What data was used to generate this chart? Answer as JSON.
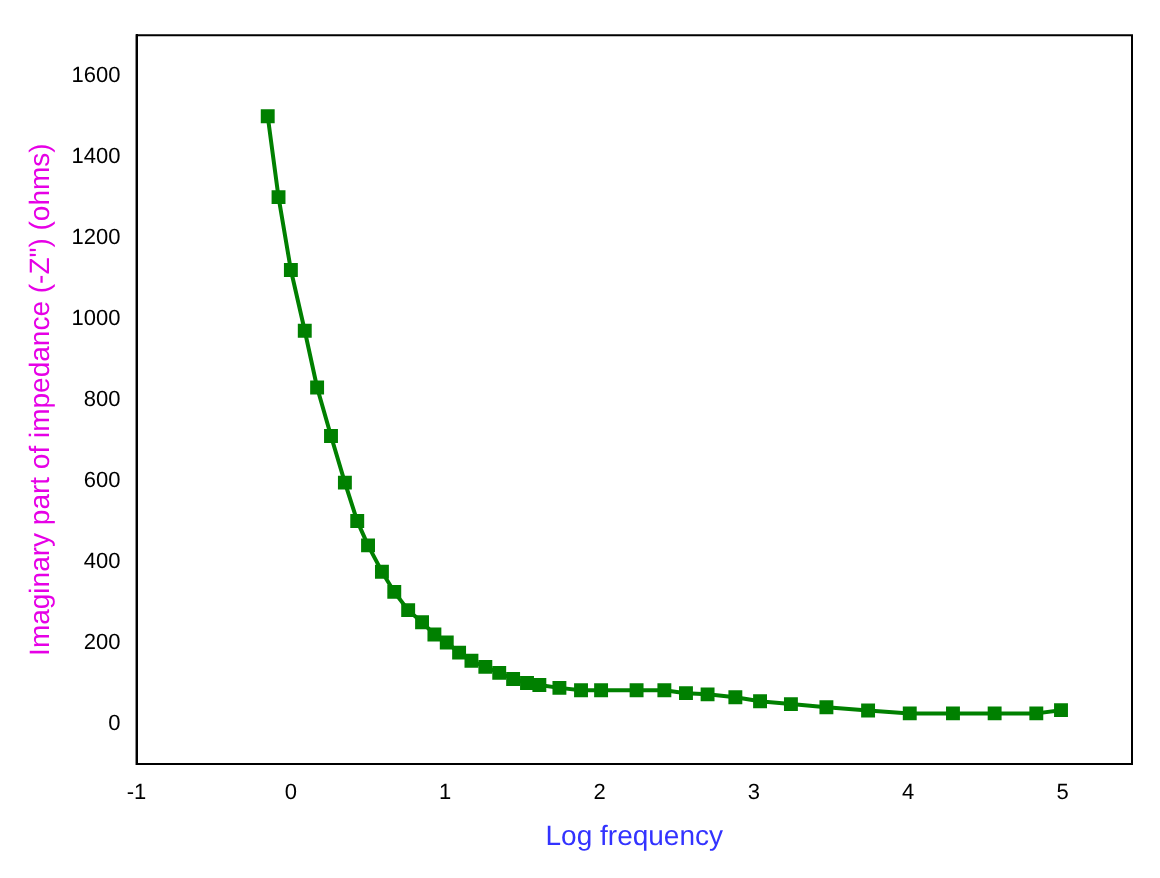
{
  "chart_data": {
    "type": "line",
    "xlabel": "Log frequency",
    "ylabel": "Imaginary part of impedance (-Z\") (ohms)",
    "series": [
      {
        "color": "#008000",
        "x": [
          -0.15,
          -0.08,
          0.0,
          0.09,
          0.17,
          0.26,
          0.35,
          0.43,
          0.5,
          0.59,
          0.67,
          0.76,
          0.85,
          0.93,
          1.01,
          1.09,
          1.17,
          1.26,
          1.35,
          1.44,
          1.53,
          1.61,
          1.74,
          1.88,
          2.01,
          2.24,
          2.42,
          2.56,
          2.7,
          2.88,
          3.04,
          3.24,
          3.47,
          3.74,
          4.01,
          4.29,
          4.56,
          4.83,
          4.99
        ],
        "values": [
          1500,
          1300,
          1120,
          970,
          830,
          710,
          595,
          500,
          440,
          375,
          325,
          280,
          250,
          220,
          200,
          175,
          155,
          140,
          125,
          110,
          100,
          95,
          88,
          82,
          82,
          82,
          82,
          75,
          72,
          65,
          55,
          48,
          40,
          32,
          25,
          25,
          25,
          25,
          33
        ]
      }
    ],
    "xlim": [
      -1,
      5.45
    ],
    "xticks": [
      -1,
      0,
      1,
      2,
      3,
      4,
      5
    ],
    "ylim": [
      -100,
      1700
    ],
    "yticks": [
      0,
      200,
      400,
      600,
      800,
      1000,
      1200,
      1400,
      1600
    ],
    "grid": false,
    "legend": false,
    "marker": "square",
    "line_style": "solid"
  }
}
